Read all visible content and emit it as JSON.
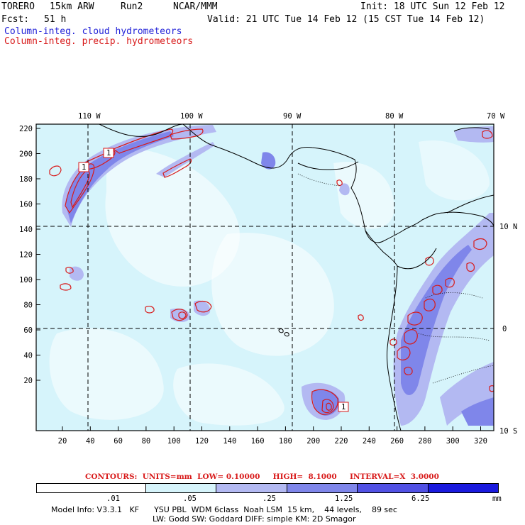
{
  "header": {
    "model_name": "TORERO",
    "resolution": "15km ARW",
    "run": "Run2",
    "org": "NCAR/MMM",
    "init": "Init: 18 UTC Sun 12 Feb 12",
    "fcst_label": "Fcst:",
    "fcst_hours": "51 h",
    "valid": "Valid: 21 UTC Tue 14 Feb 12 (15 CST Tue 14 Feb 12)",
    "field1": "Column-integ. cloud hydrometeors",
    "field2": "Column-integ. precip. hydrometeors",
    "field1_color": "#2323d8",
    "field2_color": "#d81a1a"
  },
  "map": {
    "lon_labels": [
      "110 W",
      "100 W",
      "90 W",
      "80 W",
      "70 W"
    ],
    "lat_labels": [
      "10 N",
      "0",
      "10 S"
    ],
    "y_grid_labels": [
      "220",
      "200",
      "180",
      "160",
      "140",
      "120",
      "100",
      "80",
      "60",
      "40",
      "20"
    ],
    "x_grid_labels": [
      "20",
      "40",
      "60",
      "80",
      "100",
      "120",
      "140",
      "160",
      "180",
      "200",
      "220",
      "240",
      "260",
      "280",
      "300",
      "320"
    ],
    "contour_labels": [
      "1",
      "1",
      "1"
    ]
  },
  "contours": {
    "text": "CONTOURS:  UNITS=mm  LOW= 0.10000     HIGH=  8.1000     INTERVAL=X  3.0000"
  },
  "colorbar": {
    "labels": [
      ".01",
      ".05",
      ".25",
      "1.25",
      "6.25"
    ],
    "unit": "mm",
    "colors": [
      "#ffffff",
      "#d6f4fb",
      "#b3b9f2",
      "#7f86ea",
      "#5151e4",
      "#1a1ade"
    ]
  },
  "model_info": {
    "line1": "Model Info: V3.3.1   KF      YSU PBL  WDM 6class  Noah LSM  15 km,    44 levels,    89 sec",
    "line2": "LW: Godd SW: Goddard DIFF: simple KM: 2D Smagor"
  }
}
